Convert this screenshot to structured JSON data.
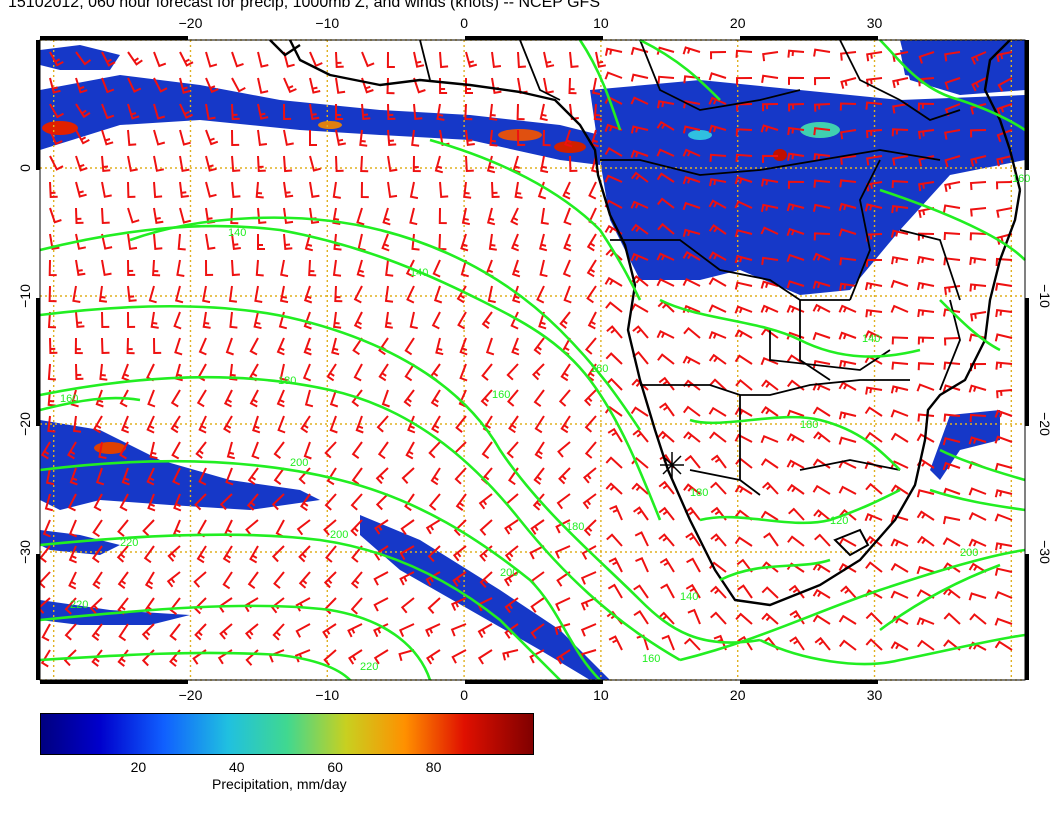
{
  "title": "15102012, 060 hour forecast for precip, 1000mb Z, and winds (knots) -- NCEP GFS",
  "map": {
    "lon_range": [
      -31,
      41
    ],
    "lat_range": [
      -40,
      10
    ],
    "lon_ticks": [
      -20,
      -10,
      0,
      10,
      20,
      30
    ],
    "lat_ticks": [
      0,
      -10,
      -20,
      -30
    ],
    "lon_labels": [
      "−20",
      "−10",
      "0",
      "10",
      "20",
      "30"
    ],
    "lat_labels": [
      "0",
      "−10",
      "−20",
      "−30"
    ],
    "lat_labels_right": [
      "−10",
      "−20",
      "−30"
    ],
    "contour_labels": [
      "140",
      "140",
      "180",
      "160",
      "160",
      "140",
      "200",
      "200",
      "220",
      "220",
      "180",
      "160",
      "180",
      "200",
      "220",
      "160",
      "140",
      "120",
      "180",
      "160",
      "200"
    ],
    "colors": {
      "contour": "#22ee22",
      "wind": "#ee1111",
      "coast": "#000000",
      "grid": "#e0b020"
    }
  },
  "colorbar": {
    "ticks": [
      "20",
      "40",
      "60",
      "80"
    ],
    "tick_values": [
      20,
      40,
      60,
      80
    ],
    "range": [
      0,
      100
    ],
    "label": "Precipitation, mm/day"
  }
}
